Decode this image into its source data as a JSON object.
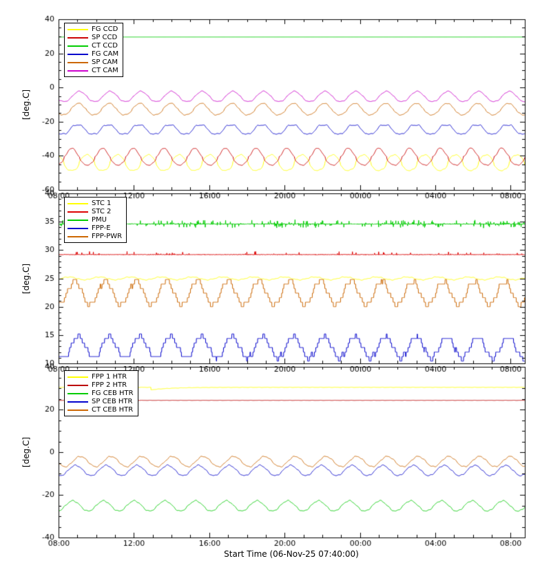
{
  "figure": {
    "xlabel": "Start Time (06-Nov-25 07:40:00)",
    "background_color": "#ffffff",
    "axis_color": "#000000",
    "orbital_period_hours": 1.63
  },
  "chart_data": [
    {
      "type": "line",
      "panel_name": "ccd-and-camera-temperatures",
      "ylabel": "[deg.C]",
      "ylim": [
        -60,
        40
      ],
      "yticks": [
        -60,
        -40,
        -20,
        0,
        20,
        40
      ],
      "ytick_labels": [
        "-60",
        "-40",
        "-20",
        "0",
        "20",
        "40"
      ],
      "y_minor_step": 5,
      "xlim_hours": [
        8,
        32.75
      ],
      "xticks_hours": [
        8,
        12,
        16,
        20,
        24,
        28,
        32
      ],
      "xtick_labels": [
        "08:00",
        "12:00",
        "16:00",
        "20:00",
        "00:00",
        "04:00",
        "08:00"
      ],
      "x_minor_step_hours": 1,
      "legend_position": "top-left",
      "grid": false,
      "series": [
        {
          "name": "FG CCD",
          "color": "#ffff00",
          "waveform": "shaped-sine",
          "base": -44.0,
          "amplitude": 4.6,
          "period_hours": 1.63,
          "phase_hours": 0.95,
          "shape_pos": 0.8,
          "shape_neg": 0.5,
          "wiggle": 0.3,
          "approx_range": [
            -48.6,
            -39.4
          ]
        },
        {
          "name": "SP CCD",
          "color": "#cc0000",
          "waveform": "shaped-sine",
          "base": -40.4,
          "amplitude": 5.0,
          "period_hours": 1.63,
          "phase_hours": 0.15,
          "shape_pos": 1.7,
          "shape_neg": 0.55,
          "wiggle": 0.3,
          "approx_range": [
            -45.4,
            -35.4
          ]
        },
        {
          "name": "CT CCD",
          "color": "#00cc00",
          "waveform": "flat",
          "base": 29.6,
          "approx_range": [
            29.6,
            29.6
          ]
        },
        {
          "name": "FG CAM",
          "color": "#0000cc",
          "waveform": "clipped-sine",
          "base": -24.6,
          "amplitude": 2.5,
          "period_hours": 1.63,
          "phase_hours": 0.45,
          "wiggle": 0.25,
          "approx_range": [
            -27.1,
            -22.1
          ]
        },
        {
          "name": "SP CAM",
          "color": "#cc6600",
          "waveform": "shaped-sine",
          "base": -12.6,
          "amplitude": 3.4,
          "period_hours": 1.63,
          "phase_hours": 0.5,
          "shape_pos": 1.2,
          "shape_neg": 0.7,
          "wiggle": 0.3,
          "approx_range": [
            -16.0,
            -9.2
          ]
        },
        {
          "name": "CT CAM",
          "color": "#cc00cc",
          "waveform": "shaped-sine",
          "base": -5.2,
          "amplitude": 3.0,
          "period_hours": 1.63,
          "phase_hours": 0.55,
          "shape_pos": 1.2,
          "shape_neg": 0.7,
          "wiggle": 0.25,
          "approx_range": [
            -8.2,
            -2.2
          ]
        }
      ]
    },
    {
      "type": "line",
      "panel_name": "electronics-temperatures",
      "ylabel": "[deg.C]",
      "ylim": [
        10,
        40
      ],
      "yticks": [
        10,
        15,
        20,
        25,
        30,
        35,
        40
      ],
      "ytick_labels": [
        "10",
        "15",
        "20",
        "25",
        "30",
        "35",
        "40"
      ],
      "y_minor_step": 1,
      "xlim_hours": [
        8,
        32.75
      ],
      "xticks_hours": [
        8,
        12,
        16,
        20,
        24,
        28,
        32
      ],
      "xtick_labels": [
        "08:00",
        "12:00",
        "16:00",
        "20:00",
        "00:00",
        "04:00",
        "08:00"
      ],
      "x_minor_step_hours": 1,
      "legend_position": "top-left",
      "grid": false,
      "series": [
        {
          "name": "STC 1",
          "color": "#ffff00",
          "waveform": "sine",
          "base": 25.0,
          "amplitude": 0.25,
          "period_hours": 1.63,
          "phase_hours": 0.0,
          "wiggle": 0.08,
          "approx_range": [
            24.7,
            25.3
          ]
        },
        {
          "name": "STC 2",
          "color": "#dd0000",
          "waveform": "noisy-flat",
          "base": 29.2,
          "jitter": 0.1,
          "spike_probability": 0.02,
          "spike_amplitude": 0.55,
          "spike_direction": "up",
          "approx_range": [
            29.2,
            29.8
          ]
        },
        {
          "name": "PMU",
          "color": "#00cc00",
          "waveform": "noisy-flat",
          "base": 34.6,
          "jitter": 0.15,
          "spike_probability": 0.1,
          "spike_amplitude": 0.7,
          "spike_direction": "both",
          "approx_range": [
            33.9,
            35.3
          ]
        },
        {
          "name": "FPP-E",
          "color": "#0000cc",
          "waveform": "step-sine",
          "base": 12.8,
          "amplitude": 1.9,
          "quantize": 0.8,
          "period_hours": 1.63,
          "phase_hours": 0.5,
          "wiggle": 0.5,
          "approx_range": [
            10.4,
            15.2
          ]
        },
        {
          "name": "FPP-PWR",
          "color": "#cc6600",
          "waveform": "step-sine",
          "base": 22.4,
          "amplitude": 2.1,
          "quantize": 0.8,
          "period_hours": 1.63,
          "phase_hours": 0.3,
          "wiggle": 0.45,
          "approx_range": [
            19.8,
            25.0
          ]
        }
      ]
    },
    {
      "type": "line",
      "panel_name": "heater-temperatures",
      "ylabel": "[deg.C]",
      "ylim": [
        -40,
        40
      ],
      "yticks": [
        -40,
        -20,
        0,
        20,
        40
      ],
      "ytick_labels": [
        "-40",
        "-20",
        "0",
        "20",
        "40"
      ],
      "y_minor_step": 5,
      "xlim_hours": [
        8,
        32.75
      ],
      "xticks_hours": [
        8,
        12,
        16,
        20,
        24,
        28,
        32
      ],
      "xtick_labels": [
        "08:00",
        "12:00",
        "16:00",
        "20:00",
        "00:00",
        "04:00",
        "08:00"
      ],
      "x_minor_step_hours": 1,
      "legend_position": "top-left",
      "grid": false,
      "series": [
        {
          "name": "FPP 1 HTR",
          "color": "#ffff00",
          "waveform": "flat",
          "base": 30.4,
          "wiggle": 0.08,
          "dip": {
            "start_hour": 12.9,
            "depth": 1.2,
            "recovery_hours": 1.1
          },
          "approx_range": [
            29.2,
            30.5
          ]
        },
        {
          "name": "FPP 2 HTR",
          "color": "#bb0000",
          "waveform": "flat",
          "base": 24.3,
          "wiggle": 0.05,
          "approx_range": [
            24.2,
            24.4
          ]
        },
        {
          "name": "FG CEB HTR",
          "color": "#00cc00",
          "waveform": "sine",
          "base": -25.2,
          "amplitude": 2.4,
          "period_hours": 1.63,
          "phase_hours": 0.2,
          "wiggle": 0.3,
          "approx_range": [
            -27.9,
            -22.5
          ]
        },
        {
          "name": "SP CEB HTR",
          "color": "#0000cc",
          "waveform": "sine",
          "base": -8.6,
          "amplitude": 2.4,
          "period_hours": 1.63,
          "phase_hours": 0.35,
          "wiggle": 0.3,
          "approx_range": [
            -11.3,
            -5.9
          ]
        },
        {
          "name": "CT CEB HTR",
          "color": "#cc6600",
          "waveform": "sine",
          "base": -4.4,
          "amplitude": 2.4,
          "period_hours": 1.63,
          "phase_hours": 0.6,
          "wiggle": 0.3,
          "approx_range": [
            -7.1,
            -1.7
          ]
        }
      ]
    }
  ]
}
